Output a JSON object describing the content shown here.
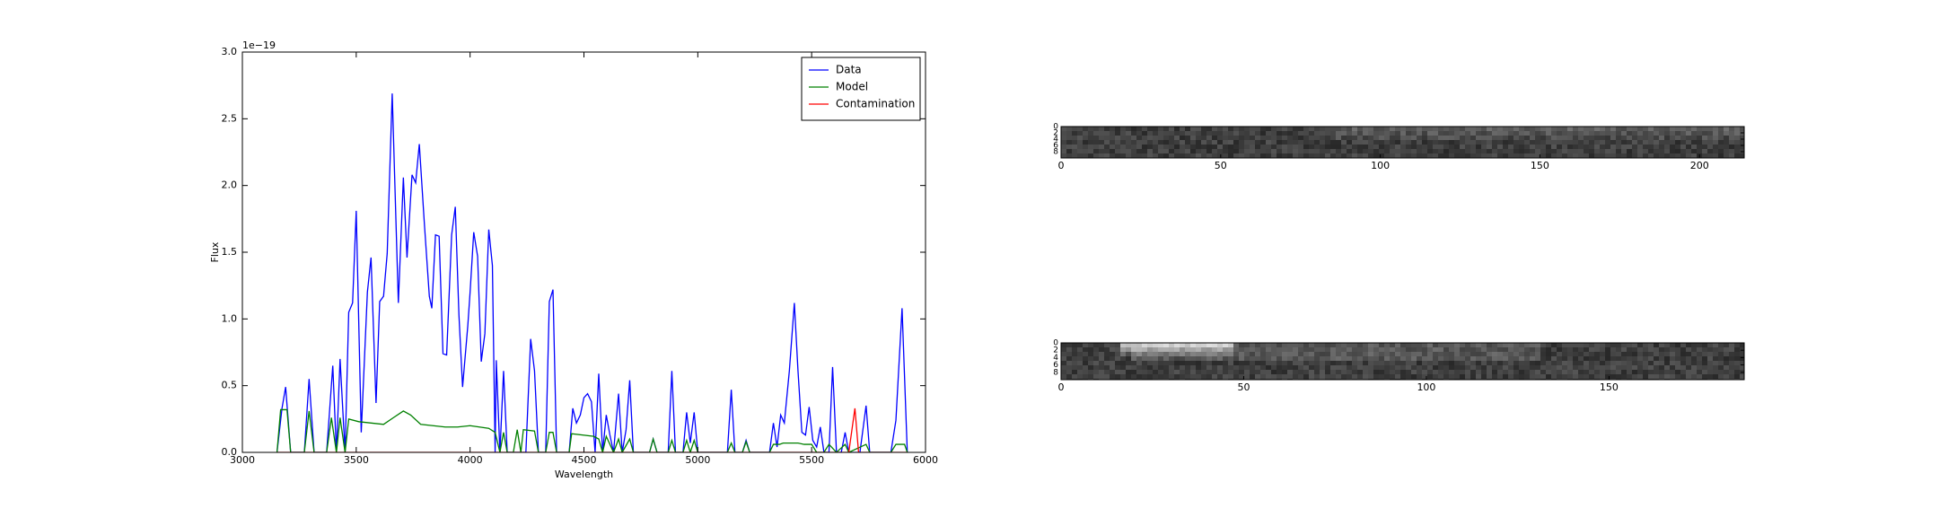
{
  "chart_data": [
    {
      "type": "line",
      "offset_label": "1e−19",
      "x_label": "Wavelength",
      "y_label": "Flux",
      "xlim": [
        3000,
        6000
      ],
      "xticks": [
        3000,
        3500,
        4000,
        4500,
        5000,
        5500,
        6000
      ],
      "ylim": [
        0,
        3.0
      ],
      "yticks": [
        {
          "value": 0,
          "label": "0.0"
        },
        {
          "value": 0.5,
          "label": "0.5"
        },
        {
          "value": 1.0,
          "label": "1.0"
        },
        {
          "value": 1.5,
          "label": "1.5"
        },
        {
          "value": 2.0,
          "label": "2.0"
        },
        {
          "value": 2.5,
          "label": "2.5"
        },
        {
          "value": 3.0,
          "label": "3.0"
        }
      ],
      "legend": "upper right",
      "series": [
        {
          "name": "Data",
          "color": "#0000ff",
          "x": [
            3152,
            3174,
            3190,
            3212,
            3272,
            3293,
            3315,
            3370,
            3397,
            3413,
            3429,
            3451,
            3467,
            3484,
            3500,
            3522,
            3549,
            3565,
            3587,
            3603,
            3620,
            3636,
            3658,
            3685,
            3707,
            3723,
            3745,
            3761,
            3777,
            3799,
            3821,
            3832,
            3848,
            3864,
            3881,
            3897,
            3919,
            3935,
            3951,
            3967,
            3990,
            4000,
            4016,
            4033,
            4049,
            4065,
            4082,
            4098,
            4110,
            4115,
            4131,
            4147,
            4163,
            4245,
            4266,
            4283,
            4300,
            4332,
            4348,
            4364,
            4380,
            4435,
            4451,
            4467,
            4484,
            4500,
            4516,
            4533,
            4549,
            4565,
            4582,
            4598,
            4614,
            4630,
            4652,
            4668,
            4685,
            4701,
            4717,
            4788,
            4804,
            4821,
            4870,
            4886,
            4902,
            4935,
            4951,
            4967,
            4984,
            5000,
            5130,
            5147,
            5163,
            5196,
            5212,
            5228,
            5315,
            5332,
            5348,
            5364,
            5380,
            5402,
            5424,
            5440,
            5457,
            5473,
            5489,
            5505,
            5522,
            5538,
            5554,
            5576,
            5592,
            5609,
            5630,
            5647,
            5663,
            5712,
            5739,
            5755,
            5848,
            5870,
            5897,
            5920
          ],
          "values": [
            0,
            0.33,
            0.49,
            0,
            0,
            0.55,
            0,
            0,
            0.65,
            0,
            0.7,
            0,
            1.05,
            1.12,
            1.81,
            0.15,
            1.2,
            1.46,
            0.37,
            1.13,
            1.17,
            1.49,
            2.69,
            1.12,
            2.06,
            1.46,
            2.08,
            2.02,
            2.31,
            1.72,
            1.17,
            1.08,
            1.63,
            1.62,
            0.74,
            0.73,
            1.63,
            1.84,
            1.03,
            0.49,
            0.95,
            1.2,
            1.65,
            1.47,
            0.68,
            0.89,
            1.67,
            1.4,
            0,
            0.69,
            0,
            0.61,
            0,
            0,
            0.85,
            0.61,
            0,
            0,
            1.13,
            1.22,
            0,
            0,
            0.33,
            0.22,
            0.28,
            0.41,
            0.44,
            0.38,
            0,
            0.59,
            0,
            0.28,
            0.13,
            0,
            0.44,
            0,
            0.17,
            0.54,
            0,
            0,
            0.1,
            0,
            0,
            0.61,
            0,
            0,
            0.3,
            0.07,
            0.3,
            0,
            0,
            0.47,
            0,
            0,
            0.09,
            0,
            0,
            0.22,
            0.04,
            0.28,
            0.22,
            0.61,
            1.12,
            0.61,
            0.15,
            0.13,
            0.34,
            0.09,
            0.04,
            0.19,
            0,
            0,
            0.64,
            0,
            0,
            0.15,
            0,
            0,
            0.35,
            0,
            0,
            0.24,
            1.08,
            0
          ]
        },
        {
          "name": "Model",
          "color": "#008000",
          "x": [
            3152,
            3168,
            3196,
            3212,
            3272,
            3293,
            3315,
            3370,
            3391,
            3413,
            3429,
            3451,
            3467,
            3511,
            3620,
            3663,
            3707,
            3739,
            3783,
            3837,
            3891,
            3945,
            4000,
            4082,
            4110,
            4131,
            4147,
            4163,
            4190,
            4207,
            4223,
            4234,
            4283,
            4300,
            4332,
            4348,
            4364,
            4380,
            4435,
            4446,
            4543,
            4565,
            4582,
            4598,
            4630,
            4652,
            4668,
            4701,
            4717,
            4788,
            4804,
            4821,
            4870,
            4886,
            4902,
            4935,
            4951,
            4967,
            4984,
            5000,
            5130,
            5147,
            5163,
            5196,
            5212,
            5228,
            5315,
            5332,
            5359,
            5375,
            5440,
            5467,
            5500,
            5522,
            5554,
            5576,
            5609,
            5647,
            5663,
            5739,
            5755,
            5848,
            5870,
            5908,
            5920
          ],
          "values": [
            0,
            0.32,
            0.32,
            0,
            0,
            0.31,
            0,
            0,
            0.26,
            0,
            0.26,
            0,
            0.25,
            0.23,
            0.21,
            0.26,
            0.31,
            0.28,
            0.21,
            0.2,
            0.19,
            0.19,
            0.2,
            0.18,
            0.15,
            0,
            0.15,
            0,
            0,
            0.17,
            0,
            0.17,
            0.16,
            0,
            0,
            0.15,
            0.15,
            0,
            0,
            0.14,
            0.12,
            0.1,
            0,
            0.12,
            0,
            0.1,
            0,
            0.1,
            0,
            0,
            0.1,
            0,
            0,
            0.09,
            0,
            0,
            0.09,
            0,
            0.09,
            0,
            0,
            0.07,
            0,
            0,
            0.08,
            0,
            0,
            0.06,
            0.06,
            0.07,
            0.07,
            0.06,
            0.06,
            0,
            0,
            0.06,
            0,
            0.06,
            0,
            0.06,
            0,
            0,
            0.06,
            0.06,
            0
          ]
        },
        {
          "name": "Contamination",
          "color": "#ff0000",
          "x": [
            3152,
            5663,
            5690,
            5706,
            5920
          ],
          "values": [
            0,
            0,
            0.33,
            0,
            0
          ]
        }
      ]
    },
    {
      "type": "image",
      "xlim": [
        0,
        214
      ],
      "xticks": [
        0,
        50,
        100,
        150,
        200
      ],
      "ylim": [
        0,
        10
      ],
      "yticks": [
        0,
        2,
        4,
        6,
        8
      ]
    },
    {
      "type": "image",
      "xlim": [
        0,
        187
      ],
      "xticks": [
        0,
        50,
        100,
        150
      ],
      "ylim": [
        0,
        10
      ],
      "yticks": [
        0,
        2,
        4,
        6,
        8
      ]
    }
  ]
}
